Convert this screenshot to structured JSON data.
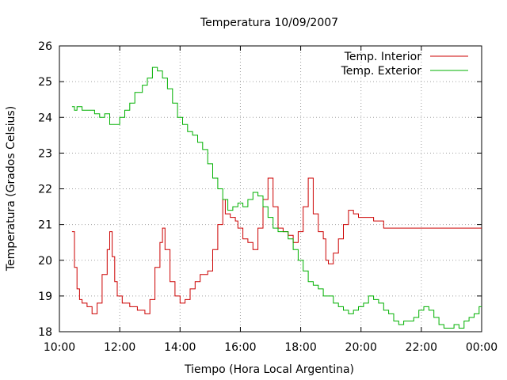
{
  "chart_data": {
    "type": "line",
    "title": "Temperatura 10/09/2007",
    "xlabel": "Tiempo (Hora Local Argentina)",
    "ylabel": "Temperatura (Grados Celsius)",
    "xlim": [
      "10:00",
      "00:00"
    ],
    "ylim": [
      18,
      26
    ],
    "x_ticks": [
      "10:00",
      "12:00",
      "14:00",
      "16:00",
      "18:00",
      "20:00",
      "22:00",
      "00:00"
    ],
    "y_ticks": [
      "18",
      "19",
      "20",
      "21",
      "22",
      "23",
      "24",
      "25",
      "26"
    ],
    "grid": true,
    "legend_position": "top-right",
    "series": [
      {
        "name": "Temp. Interior",
        "color": "#cc0000",
        "points": [
          [
            "10:25",
            20.8
          ],
          [
            "10:30",
            19.8
          ],
          [
            "10:35",
            19.2
          ],
          [
            "10:40",
            18.9
          ],
          [
            "10:45",
            18.8
          ],
          [
            "10:55",
            18.7
          ],
          [
            "11:05",
            18.5
          ],
          [
            "11:15",
            18.8
          ],
          [
            "11:25",
            19.6
          ],
          [
            "11:35",
            20.3
          ],
          [
            "11:40",
            20.8
          ],
          [
            "11:45",
            20.1
          ],
          [
            "11:50",
            19.4
          ],
          [
            "11:55",
            19.0
          ],
          [
            "12:05",
            18.8
          ],
          [
            "12:20",
            18.7
          ],
          [
            "12:35",
            18.6
          ],
          [
            "12:50",
            18.5
          ],
          [
            "13:00",
            18.9
          ],
          [
            "13:10",
            19.8
          ],
          [
            "13:20",
            20.5
          ],
          [
            "13:25",
            20.9
          ],
          [
            "13:30",
            20.3
          ],
          [
            "13:40",
            19.4
          ],
          [
            "13:50",
            19.0
          ],
          [
            "14:00",
            18.8
          ],
          [
            "14:10",
            18.9
          ],
          [
            "14:20",
            19.2
          ],
          [
            "14:30",
            19.4
          ],
          [
            "14:40",
            19.6
          ],
          [
            "14:55",
            19.7
          ],
          [
            "15:05",
            20.3
          ],
          [
            "15:15",
            21.0
          ],
          [
            "15:25",
            21.7
          ],
          [
            "15:30",
            21.3
          ],
          [
            "15:40",
            21.2
          ],
          [
            "15:50",
            21.1
          ],
          [
            "15:55",
            20.9
          ],
          [
            "16:05",
            20.6
          ],
          [
            "16:15",
            20.5
          ],
          [
            "16:25",
            20.3
          ],
          [
            "16:35",
            20.9
          ],
          [
            "16:45",
            21.7
          ],
          [
            "16:55",
            22.3
          ],
          [
            "17:05",
            21.5
          ],
          [
            "17:15",
            20.9
          ],
          [
            "17:25",
            20.8
          ],
          [
            "17:35",
            20.7
          ],
          [
            "17:45",
            20.5
          ],
          [
            "17:55",
            20.8
          ],
          [
            "18:05",
            21.5
          ],
          [
            "18:15",
            22.3
          ],
          [
            "18:25",
            21.3
          ],
          [
            "18:35",
            20.8
          ],
          [
            "18:45",
            20.6
          ],
          [
            "18:50",
            20.0
          ],
          [
            "18:55",
            19.9
          ],
          [
            "19:05",
            20.2
          ],
          [
            "19:15",
            20.6
          ],
          [
            "19:25",
            21.0
          ],
          [
            "19:35",
            21.4
          ],
          [
            "19:45",
            21.3
          ],
          [
            "19:55",
            21.2
          ],
          [
            "20:05",
            21.2
          ],
          [
            "20:15",
            21.2
          ],
          [
            "20:25",
            21.1
          ],
          [
            "20:35",
            21.1
          ],
          [
            "20:45",
            20.9
          ],
          [
            "21:15",
            20.9
          ],
          [
            "22:00",
            20.9
          ],
          [
            "23:00",
            20.9
          ],
          [
            "24:00",
            20.9
          ]
        ]
      },
      {
        "name": "Temp. Exterior",
        "color": "#00b000",
        "points": [
          [
            "10:25",
            24.3
          ],
          [
            "10:30",
            24.2
          ],
          [
            "10:35",
            24.3
          ],
          [
            "10:45",
            24.2
          ],
          [
            "11:00",
            24.2
          ],
          [
            "11:10",
            24.1
          ],
          [
            "11:20",
            24.0
          ],
          [
            "11:30",
            24.1
          ],
          [
            "11:40",
            23.8
          ],
          [
            "11:50",
            23.8
          ],
          [
            "12:00",
            24.0
          ],
          [
            "12:10",
            24.2
          ],
          [
            "12:20",
            24.4
          ],
          [
            "12:30",
            24.7
          ],
          [
            "12:45",
            24.9
          ],
          [
            "12:55",
            25.1
          ],
          [
            "13:05",
            25.4
          ],
          [
            "13:15",
            25.3
          ],
          [
            "13:25",
            25.1
          ],
          [
            "13:35",
            24.8
          ],
          [
            "13:45",
            24.4
          ],
          [
            "13:55",
            24.0
          ],
          [
            "14:05",
            23.8
          ],
          [
            "14:15",
            23.6
          ],
          [
            "14:25",
            23.5
          ],
          [
            "14:35",
            23.3
          ],
          [
            "14:45",
            23.1
          ],
          [
            "14:55",
            22.7
          ],
          [
            "15:05",
            22.3
          ],
          [
            "15:15",
            22.0
          ],
          [
            "15:25",
            21.7
          ],
          [
            "15:35",
            21.4
          ],
          [
            "15:45",
            21.5
          ],
          [
            "15:55",
            21.6
          ],
          [
            "16:05",
            21.5
          ],
          [
            "16:15",
            21.7
          ],
          [
            "16:25",
            21.9
          ],
          [
            "16:35",
            21.8
          ],
          [
            "16:45",
            21.5
          ],
          [
            "16:55",
            21.2
          ],
          [
            "17:05",
            20.9
          ],
          [
            "17:15",
            20.8
          ],
          [
            "17:25",
            20.8
          ],
          [
            "17:35",
            20.6
          ],
          [
            "17:45",
            20.3
          ],
          [
            "17:55",
            20.0
          ],
          [
            "18:05",
            19.7
          ],
          [
            "18:15",
            19.4
          ],
          [
            "18:25",
            19.3
          ],
          [
            "18:35",
            19.2
          ],
          [
            "18:45",
            19.0
          ],
          [
            "18:55",
            19.0
          ],
          [
            "19:05",
            18.8
          ],
          [
            "19:15",
            18.7
          ],
          [
            "19:25",
            18.6
          ],
          [
            "19:35",
            18.5
          ],
          [
            "19:45",
            18.6
          ],
          [
            "19:55",
            18.7
          ],
          [
            "20:05",
            18.8
          ],
          [
            "20:15",
            19.0
          ],
          [
            "20:25",
            18.9
          ],
          [
            "20:35",
            18.8
          ],
          [
            "20:45",
            18.6
          ],
          [
            "20:55",
            18.5
          ],
          [
            "21:05",
            18.3
          ],
          [
            "21:15",
            18.2
          ],
          [
            "21:25",
            18.3
          ],
          [
            "21:35",
            18.3
          ],
          [
            "21:45",
            18.4
          ],
          [
            "21:55",
            18.6
          ],
          [
            "22:05",
            18.7
          ],
          [
            "22:15",
            18.6
          ],
          [
            "22:25",
            18.4
          ],
          [
            "22:35",
            18.2
          ],
          [
            "22:45",
            18.1
          ],
          [
            "22:55",
            18.1
          ],
          [
            "23:05",
            18.2
          ],
          [
            "23:15",
            18.1
          ],
          [
            "23:25",
            18.3
          ],
          [
            "23:35",
            18.4
          ],
          [
            "23:45",
            18.5
          ],
          [
            "23:55",
            18.7
          ],
          [
            "24:00",
            18.7
          ]
        ]
      }
    ]
  }
}
